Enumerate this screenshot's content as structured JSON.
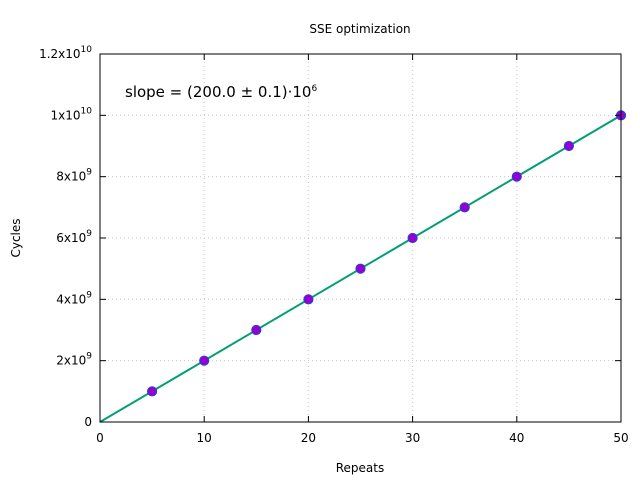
{
  "chart_data": {
    "type": "scatter",
    "title": "SSE optimization",
    "xlabel": "Repeats",
    "ylabel": "Cycles",
    "xlim": [
      0,
      50
    ],
    "ylim": [
      0,
      12000000000
    ],
    "grid": true,
    "x_ticks": [
      {
        "value": 0,
        "label": "0"
      },
      {
        "value": 10,
        "label": "10"
      },
      {
        "value": 20,
        "label": "20"
      },
      {
        "value": 30,
        "label": "30"
      },
      {
        "value": 40,
        "label": "40"
      },
      {
        "value": 50,
        "label": "50"
      }
    ],
    "y_ticks": [
      {
        "value": 0,
        "base": "0",
        "exp": ""
      },
      {
        "value": 2000000000,
        "base": "2x10",
        "exp": "9"
      },
      {
        "value": 4000000000,
        "base": "4x10",
        "exp": "9"
      },
      {
        "value": 6000000000,
        "base": "6x10",
        "exp": "9"
      },
      {
        "value": 8000000000,
        "base": "8x10",
        "exp": "9"
      },
      {
        "value": 10000000000,
        "base": "1x10",
        "exp": "10"
      },
      {
        "value": 12000000000,
        "base": "1.2x10",
        "exp": "10"
      }
    ],
    "series": [
      {
        "type": "scatter",
        "x": [
          5,
          10,
          15,
          20,
          25,
          30,
          35,
          40,
          45,
          50
        ],
        "y": [
          1000000000,
          2000000000,
          3000000000,
          4000000000,
          5000000000,
          6000000000,
          7000000000,
          8000000000,
          9000000000,
          10000000000
        ],
        "color": "#9400d3",
        "edge_color": "#3a3ad0"
      },
      {
        "type": "line",
        "x": [
          0,
          50
        ],
        "y": [
          0,
          10000000000
        ],
        "color": "#009e73"
      }
    ],
    "annotation": {
      "text": "slope = (200.0 ± 0.1)·10",
      "exp": "6"
    }
  }
}
